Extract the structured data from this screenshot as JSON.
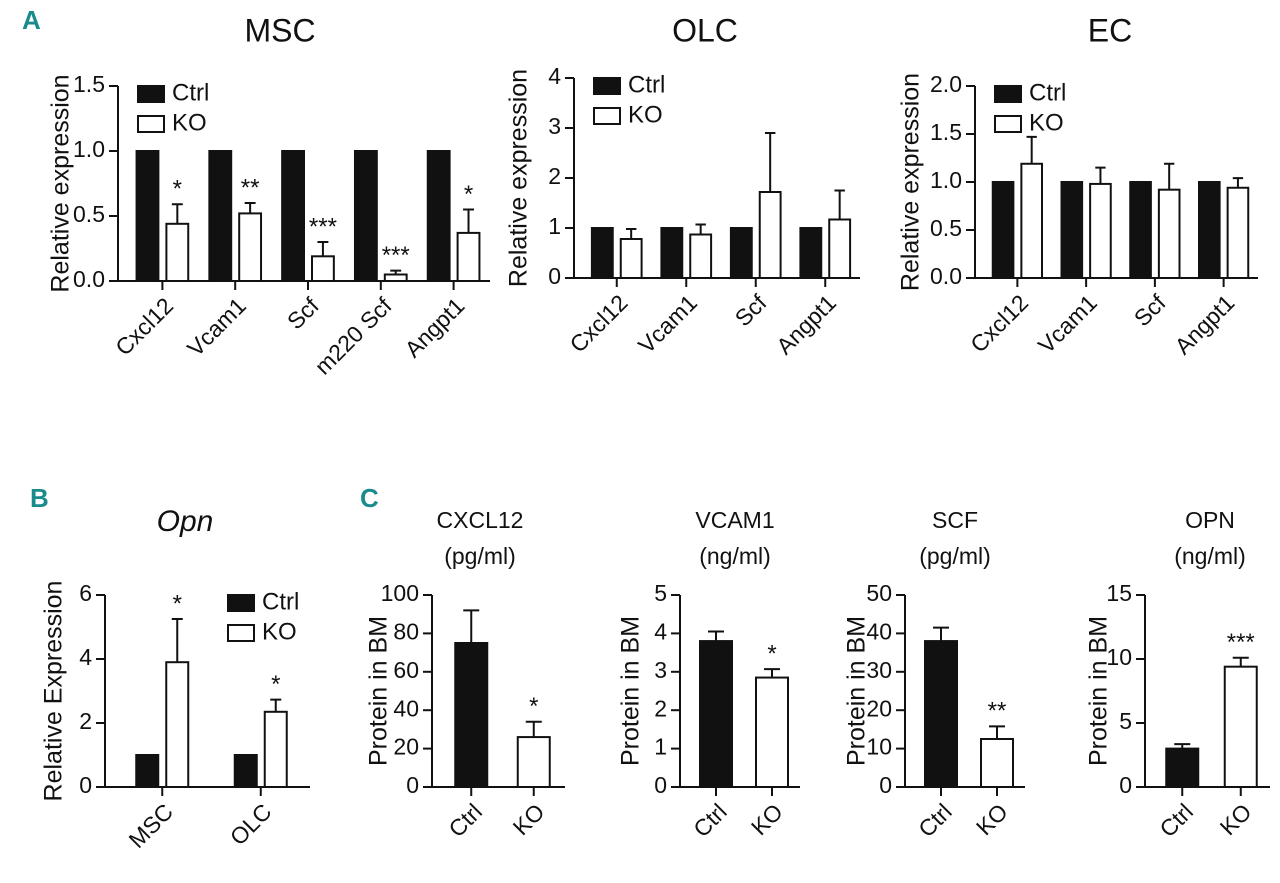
{
  "chart_data": [
    {
      "type": "bar",
      "panel": "A",
      "title": "MSC",
      "y_label": "Relative expression",
      "categories": [
        "Cxcl12",
        "Vcam1",
        "Scf",
        "m220 Scf",
        "Angpt1"
      ],
      "series": [
        {
          "name": "Ctrl",
          "color": "#111111",
          "values": [
            1,
            1,
            1,
            1,
            1
          ]
        },
        {
          "name": "KO",
          "color": "#ffffff",
          "values": [
            0.44,
            0.52,
            0.19,
            0.05,
            0.37
          ],
          "errors": [
            0.15,
            0.08,
            0.11,
            0.03,
            0.18
          ],
          "annotations": [
            "*",
            "**",
            "***",
            "***",
            "*"
          ]
        }
      ],
      "ylim": [
        0,
        1.5
      ],
      "yticks": [
        {
          "value": 0,
          "label": "0.0"
        },
        {
          "value": 0.5,
          "label": "0.5"
        },
        {
          "value": 1,
          "label": "1.0"
        },
        {
          "value": 1.5,
          "label": "1.5"
        }
      ],
      "legend": "upper left"
    },
    {
      "type": "bar",
      "title": "OLC",
      "y_label": "Relative expression",
      "categories": [
        "Cxcl12",
        "Vcam1",
        "Scf",
        "Angpt1"
      ],
      "series": [
        {
          "name": "Ctrl",
          "color": "#111111",
          "values": [
            1,
            1,
            1,
            1
          ]
        },
        {
          "name": "KO",
          "color": "#ffffff",
          "values": [
            0.78,
            0.87,
            1.72,
            1.17
          ],
          "errors": [
            0.2,
            0.2,
            1.18,
            0.58
          ]
        }
      ],
      "ylim": [
        0,
        4
      ],
      "yticks": [
        0,
        1,
        2,
        3,
        4
      ],
      "legend": "upper left"
    },
    {
      "type": "bar",
      "title": "EC",
      "y_label": "Relative expression",
      "categories": [
        "Cxcl12",
        "Vcam1",
        "Scf",
        "Angpt1"
      ],
      "series": [
        {
          "name": "Ctrl",
          "color": "#111111",
          "values": [
            1,
            1,
            1,
            1
          ]
        },
        {
          "name": "KO",
          "color": "#ffffff",
          "values": [
            1.19,
            0.98,
            0.92,
            0.94
          ],
          "errors": [
            0.28,
            0.17,
            0.27,
            0.1
          ]
        }
      ],
      "ylim": [
        0,
        2
      ],
      "yticks": [
        {
          "value": 0,
          "label": "0.0"
        },
        {
          "value": 0.5,
          "label": "0.5"
        },
        {
          "value": 1,
          "label": "1.0"
        },
        {
          "value": 1.5,
          "label": "1.5"
        },
        {
          "value": 2,
          "label": "2.0"
        }
      ],
      "legend": "upper left"
    },
    {
      "type": "bar",
      "panel": "B",
      "title": "Opn",
      "title_style": "italic",
      "y_label": "Relative Expression",
      "categories": [
        "MSC",
        "OLC"
      ],
      "series": [
        {
          "name": "Ctrl",
          "color": "#111111",
          "values": [
            1,
            1
          ]
        },
        {
          "name": "KO",
          "color": "#ffffff",
          "values": [
            3.9,
            2.35
          ],
          "errors": [
            1.35,
            0.38
          ],
          "annotations": [
            "*",
            "*"
          ]
        }
      ],
      "ylim": [
        0,
        6
      ],
      "yticks": [
        0,
        2,
        4,
        6
      ],
      "legend": "upper right"
    },
    {
      "type": "bar",
      "panel": "C",
      "title": "CXCL12",
      "subtitle": "(pg/ml)",
      "y_label": "Protein in BM",
      "categories": [
        "Ctrl",
        "KO"
      ],
      "colors": [
        "#111111",
        "#ffffff"
      ],
      "values": [
        75,
        26
      ],
      "errors": [
        17,
        8
      ],
      "annotations": [
        null,
        "*"
      ],
      "ylim": [
        0,
        100
      ],
      "yticks": [
        0,
        20,
        40,
        60,
        80,
        100
      ]
    },
    {
      "type": "bar",
      "title": "VCAM1",
      "subtitle": "(ng/ml)",
      "y_label": "Protein in BM",
      "categories": [
        "Ctrl",
        "KO"
      ],
      "colors": [
        "#111111",
        "#ffffff"
      ],
      "values": [
        3.8,
        2.85
      ],
      "errors": [
        0.25,
        0.22
      ],
      "annotations": [
        null,
        "*"
      ],
      "ylim": [
        0,
        5
      ],
      "yticks": [
        0,
        1,
        2,
        3,
        4,
        5
      ]
    },
    {
      "type": "bar",
      "title": "SCF",
      "subtitle": "(pg/ml)",
      "y_label": "Protein in BM",
      "categories": [
        "Ctrl",
        "KO"
      ],
      "colors": [
        "#111111",
        "#ffffff"
      ],
      "values": [
        38,
        12.5
      ],
      "errors": [
        3.5,
        3.3
      ],
      "annotations": [
        null,
        "**"
      ],
      "ylim": [
        0,
        50
      ],
      "yticks": [
        0,
        10,
        20,
        30,
        40,
        50
      ]
    },
    {
      "type": "bar",
      "title": "OPN",
      "subtitle": "(ng/ml)",
      "y_label": "Protein in BM",
      "categories": [
        "Ctrl",
        "KO"
      ],
      "colors": [
        "#111111",
        "#ffffff"
      ],
      "values": [
        3,
        9.4
      ],
      "errors": [
        0.35,
        0.7
      ],
      "annotations": [
        null,
        "***"
      ],
      "ylim": [
        0,
        15
      ],
      "yticks": [
        0,
        5,
        10,
        15
      ]
    }
  ]
}
